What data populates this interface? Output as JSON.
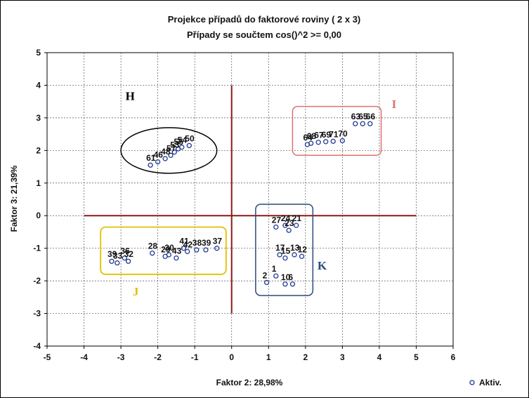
{
  "chart_data": {
    "type": "scatter",
    "title_line1": "Projekce případů do faktorové roviny      ( 2 x  3)",
    "title_line2": "Případy se součtem cos()^2  >=    0,00",
    "xlabel": "Faktor 2: 28,98%",
    "ylabel": "Faktor 3: 21,39%",
    "xlim": [
      -5,
      6
    ],
    "ylim": [
      -4,
      5
    ],
    "xticks": [
      -5,
      -4,
      -3,
      -2,
      -1,
      0,
      1,
      2,
      3,
      4,
      5,
      6
    ],
    "yticks": [
      -4,
      -3,
      -2,
      -1,
      0,
      1,
      2,
      3,
      4,
      5
    ],
    "grid": true,
    "legend": {
      "position": "bottom-right",
      "label": "Aktiv."
    },
    "colors": {
      "points": "#1f3a93",
      "axes_lines": "#8b1a1a",
      "grid": "#555555"
    },
    "points": [
      {
        "label": "64",
        "x": 2.05,
        "y": 2.18
      },
      {
        "label": "68",
        "x": 2.15,
        "y": 2.22
      },
      {
        "label": "67",
        "x": 2.35,
        "y": 2.25
      },
      {
        "label": "69",
        "x": 2.55,
        "y": 2.27
      },
      {
        "label": "71",
        "x": 2.75,
        "y": 2.28
      },
      {
        "label": "70",
        "x": 3.0,
        "y": 2.3
      },
      {
        "label": "63",
        "x": 3.35,
        "y": 2.82
      },
      {
        "label": "65",
        "x": 3.55,
        "y": 2.82
      },
      {
        "label": "66",
        "x": 3.75,
        "y": 2.82
      },
      {
        "label": "61",
        "x": -2.2,
        "y": 1.55
      },
      {
        "label": "46",
        "x": -2.0,
        "y": 1.65
      },
      {
        "label": "48",
        "x": -1.8,
        "y": 1.75
      },
      {
        "label": "57",
        "x": -1.65,
        "y": 1.85
      },
      {
        "label": "53",
        "x": -1.55,
        "y": 1.95
      },
      {
        "label": "55",
        "x": -1.45,
        "y": 2.05
      },
      {
        "label": "54",
        "x": -1.35,
        "y": 2.1
      },
      {
        "label": "50",
        "x": -1.15,
        "y": 2.15
      },
      {
        "label": "39",
        "x": -3.25,
        "y": -1.4
      },
      {
        "label": "33",
        "x": -3.1,
        "y": -1.45
      },
      {
        "label": "36",
        "x": -2.9,
        "y": -1.3
      },
      {
        "label": "32",
        "x": -2.8,
        "y": -1.4
      },
      {
        "label": "28",
        "x": -2.15,
        "y": -1.15
      },
      {
        "label": "29",
        "x": -1.8,
        "y": -1.25
      },
      {
        "label": "30",
        "x": -1.7,
        "y": -1.2
      },
      {
        "label": "43",
        "x": -1.5,
        "y": -1.3
      },
      {
        "label": "41",
        "x": -1.3,
        "y": -1.0
      },
      {
        "label": "42",
        "x": -1.2,
        "y": -1.1
      },
      {
        "label": "38",
        "x": -0.95,
        "y": -1.05
      },
      {
        "label": "39",
        "x": -0.7,
        "y": -1.05
      },
      {
        "label": "37",
        "x": -0.4,
        "y": -1.0
      },
      {
        "label": "27",
        "x": 1.2,
        "y": -0.35
      },
      {
        "label": "24",
        "x": 1.45,
        "y": -0.3
      },
      {
        "label": "23",
        "x": 1.55,
        "y": -0.45
      },
      {
        "label": "21",
        "x": 1.75,
        "y": -0.3
      },
      {
        "label": "17",
        "x": 1.3,
        "y": -1.2
      },
      {
        "label": "15",
        "x": 1.45,
        "y": -1.3
      },
      {
        "label": "13",
        "x": 1.7,
        "y": -1.2
      },
      {
        "label": "12",
        "x": 1.9,
        "y": -1.25
      },
      {
        "label": "2",
        "x": 0.95,
        "y": -2.05
      },
      {
        "label": "1",
        "x": 1.2,
        "y": -1.85
      },
      {
        "label": "10",
        "x": 1.45,
        "y": -2.1
      },
      {
        "label": "6",
        "x": 1.65,
        "y": -2.1
      }
    ],
    "groups": [
      {
        "label": "H",
        "color": "#000000"
      },
      {
        "label": "I",
        "color": "#e07070"
      },
      {
        "label": "J",
        "color": "#e0c000"
      },
      {
        "label": "K",
        "color": "#2c4a7a"
      }
    ]
  }
}
